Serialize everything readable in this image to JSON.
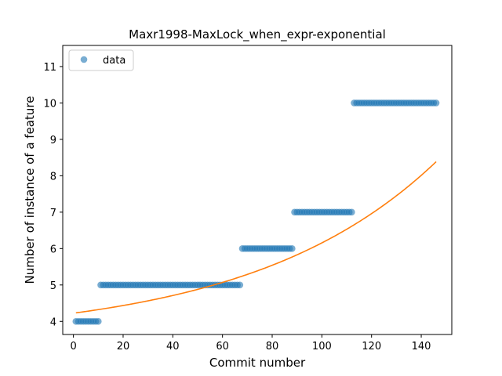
{
  "chart_data": {
    "type": "scatter",
    "title": "Maxr1998-MaxLock_when_expr-exponential",
    "xlabel": "Commit number",
    "ylabel": "Number of instance of a feature",
    "xlim": [
      -4.3,
      152.3
    ],
    "ylim": [
      3.64,
      11.58
    ],
    "xticks": [
      0,
      20,
      40,
      60,
      80,
      100,
      120,
      140
    ],
    "yticks": [
      4,
      5,
      6,
      7,
      8,
      9,
      10,
      11
    ],
    "legend": {
      "position": "top-left",
      "entries": [
        "data"
      ]
    },
    "colors": {
      "data": "#1f77b4",
      "fit": "#ff7f0e"
    },
    "grid": false,
    "series": [
      {
        "name": "data",
        "kind": "scatter",
        "segments": [
          {
            "x_start": 1,
            "x_end": 10,
            "y": 4
          },
          {
            "x_start": 11,
            "x_end": 67,
            "y": 5
          },
          {
            "x_start": 68,
            "x_end": 88,
            "y": 6
          },
          {
            "x_start": 89,
            "x_end": 112,
            "y": 7
          },
          {
            "x_start": 113,
            "x_end": 146,
            "y": 10
          }
        ]
      },
      {
        "kind": "line",
        "model": "exponential",
        "x_range": [
          1,
          146
        ],
        "params": {
          "a": 3.54,
          "b": 0.685,
          "c": 0.0134
        }
      }
    ]
  }
}
